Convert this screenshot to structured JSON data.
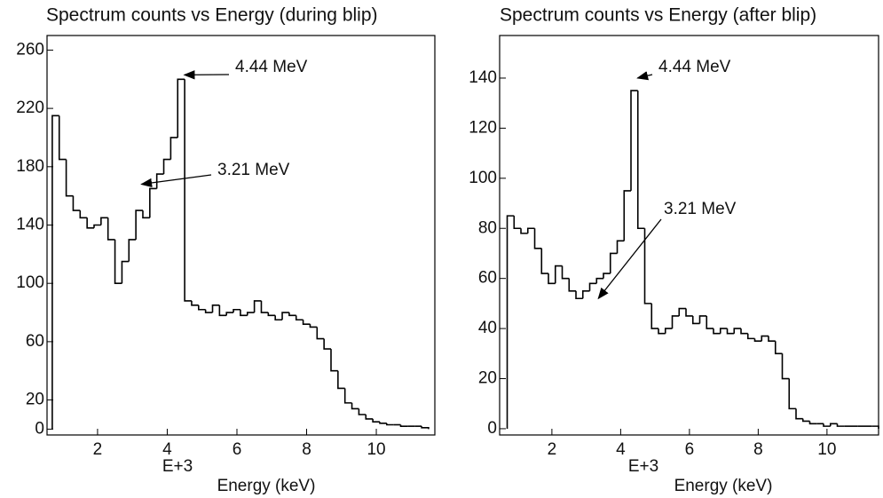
{
  "chart_data": [
    {
      "type": "histogram",
      "title": "Spectrum counts vs Energy (during blip)",
      "x_label": "Energy (keV)",
      "x_multiplier": "E+3",
      "bins": [
        0.7,
        0.9,
        1.1,
        1.3,
        1.5,
        1.7,
        1.9,
        2.1,
        2.3,
        2.5,
        2.7,
        2.9,
        3.1,
        3.3,
        3.5,
        3.7,
        3.9,
        4.1,
        4.3,
        4.5,
        4.7,
        4.9,
        5.1,
        5.3,
        5.5,
        5.7,
        5.9,
        6.1,
        6.3,
        6.5,
        6.7,
        6.9,
        7.1,
        7.3,
        7.5,
        7.7,
        7.9,
        8.1,
        8.3,
        8.5,
        8.7,
        8.9,
        9.1,
        9.3,
        9.5,
        9.7,
        9.9,
        10.1,
        10.3,
        10.5,
        10.7,
        10.9,
        11.1,
        11.3,
        11.5
      ],
      "values": [
        215,
        185,
        160,
        150,
        145,
        138,
        140,
        145,
        130,
        100,
        115,
        130,
        150,
        145,
        165,
        175,
        185,
        200,
        240,
        88,
        85,
        82,
        80,
        85,
        78,
        80,
        82,
        78,
        80,
        88,
        80,
        78,
        75,
        80,
        78,
        75,
        72,
        70,
        62,
        55,
        40,
        28,
        18,
        14,
        10,
        7,
        5,
        4,
        3,
        3,
        2,
        2,
        2,
        1
      ],
      "color": "#000000",
      "xlim": [
        0.55,
        11.68
      ],
      "ylim": [
        -4,
        270
      ],
      "xticks": [
        2,
        4,
        6,
        8,
        10
      ],
      "yticks": [
        0,
        20,
        60,
        100,
        140,
        180,
        220,
        260
      ],
      "annotations": [
        {
          "label": "4.44 MeV",
          "x": 4.44,
          "y": 243
        },
        {
          "label": "3.21 MeV",
          "x": 3.21,
          "y": 168
        }
      ]
    },
    {
      "type": "histogram",
      "title": "Spectrum counts vs Energy (after blip)",
      "x_label": "Energy (keV)",
      "x_multiplier": "E+3",
      "bins": [
        0.7,
        0.9,
        1.1,
        1.3,
        1.5,
        1.7,
        1.9,
        2.1,
        2.3,
        2.5,
        2.7,
        2.9,
        3.1,
        3.3,
        3.5,
        3.7,
        3.9,
        4.1,
        4.3,
        4.5,
        4.7,
        4.9,
        5.1,
        5.3,
        5.5,
        5.7,
        5.9,
        6.1,
        6.3,
        6.5,
        6.7,
        6.9,
        7.1,
        7.3,
        7.5,
        7.7,
        7.9,
        8.1,
        8.3,
        8.5,
        8.7,
        8.9,
        9.1,
        9.3,
        9.5,
        9.7,
        9.9,
        10.1,
        10.3,
        10.5,
        10.7,
        10.9,
        11.1,
        11.3,
        11.5
      ],
      "values": [
        85,
        80,
        78,
        80,
        72,
        62,
        58,
        65,
        60,
        55,
        52,
        55,
        58,
        60,
        62,
        70,
        75,
        95,
        135,
        80,
        50,
        40,
        38,
        40,
        45,
        48,
        45,
        42,
        45,
        40,
        38,
        40,
        38,
        40,
        38,
        36,
        35,
        37,
        35,
        30,
        20,
        8,
        4,
        3,
        2,
        2,
        1,
        2,
        1,
        1,
        1,
        1,
        1,
        1
      ],
      "color": "#000000",
      "xlim": [
        0.48,
        11.5
      ],
      "ylim": [
        -2.5,
        157
      ],
      "xticks": [
        2,
        4,
        6,
        8,
        10
      ],
      "yticks": [
        0,
        20,
        40,
        60,
        80,
        100,
        120,
        140
      ],
      "annotations": [
        {
          "label": "4.44 MeV",
          "x": 4.44,
          "y": 140
        },
        {
          "label": "3.21 MeV",
          "x": 3.3,
          "y": 52
        }
      ]
    }
  ]
}
